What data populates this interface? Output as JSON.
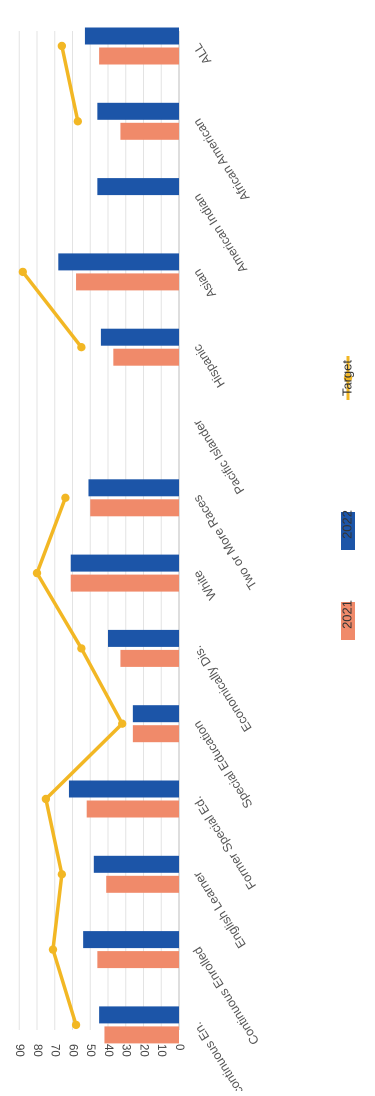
{
  "chart_data": {
    "type": "bar",
    "orientation": "rotated-horizontal",
    "categories": [
      "ALL",
      "African American",
      "American Indian",
      "Asian",
      "Hispanic",
      "Pacific Islander",
      "Two or More Races",
      "White",
      "Economically Dis.",
      "Special Education",
      "Former Special Ed.",
      "English Learner",
      "Continuous Enrolled",
      "Noncontinuous En."
    ],
    "series": [
      {
        "name": "2021",
        "type": "bar",
        "color": "#f08a6a",
        "values": [
          45,
          33,
          null,
          58,
          37,
          null,
          50,
          61,
          33,
          26,
          52,
          41,
          46,
          42
        ]
      },
      {
        "name": "2022",
        "type": "bar",
        "color": "#1c55a8",
        "values": [
          53,
          46,
          46,
          68,
          44,
          null,
          51,
          61,
          40,
          26,
          62,
          48,
          54,
          45
        ]
      },
      {
        "name": "Target",
        "type": "line",
        "color": "#f2b724",
        "values": [
          66,
          57,
          null,
          88,
          55,
          null,
          64,
          80,
          55,
          32,
          75,
          66,
          71,
          58
        ]
      }
    ],
    "y_ticks": [
      "0",
      "10",
      "20",
      "30",
      "40",
      "50",
      "60",
      "70",
      "80",
      "90"
    ],
    "ylim": [
      0,
      90
    ],
    "grid": true,
    "legend_position": "bottom"
  }
}
